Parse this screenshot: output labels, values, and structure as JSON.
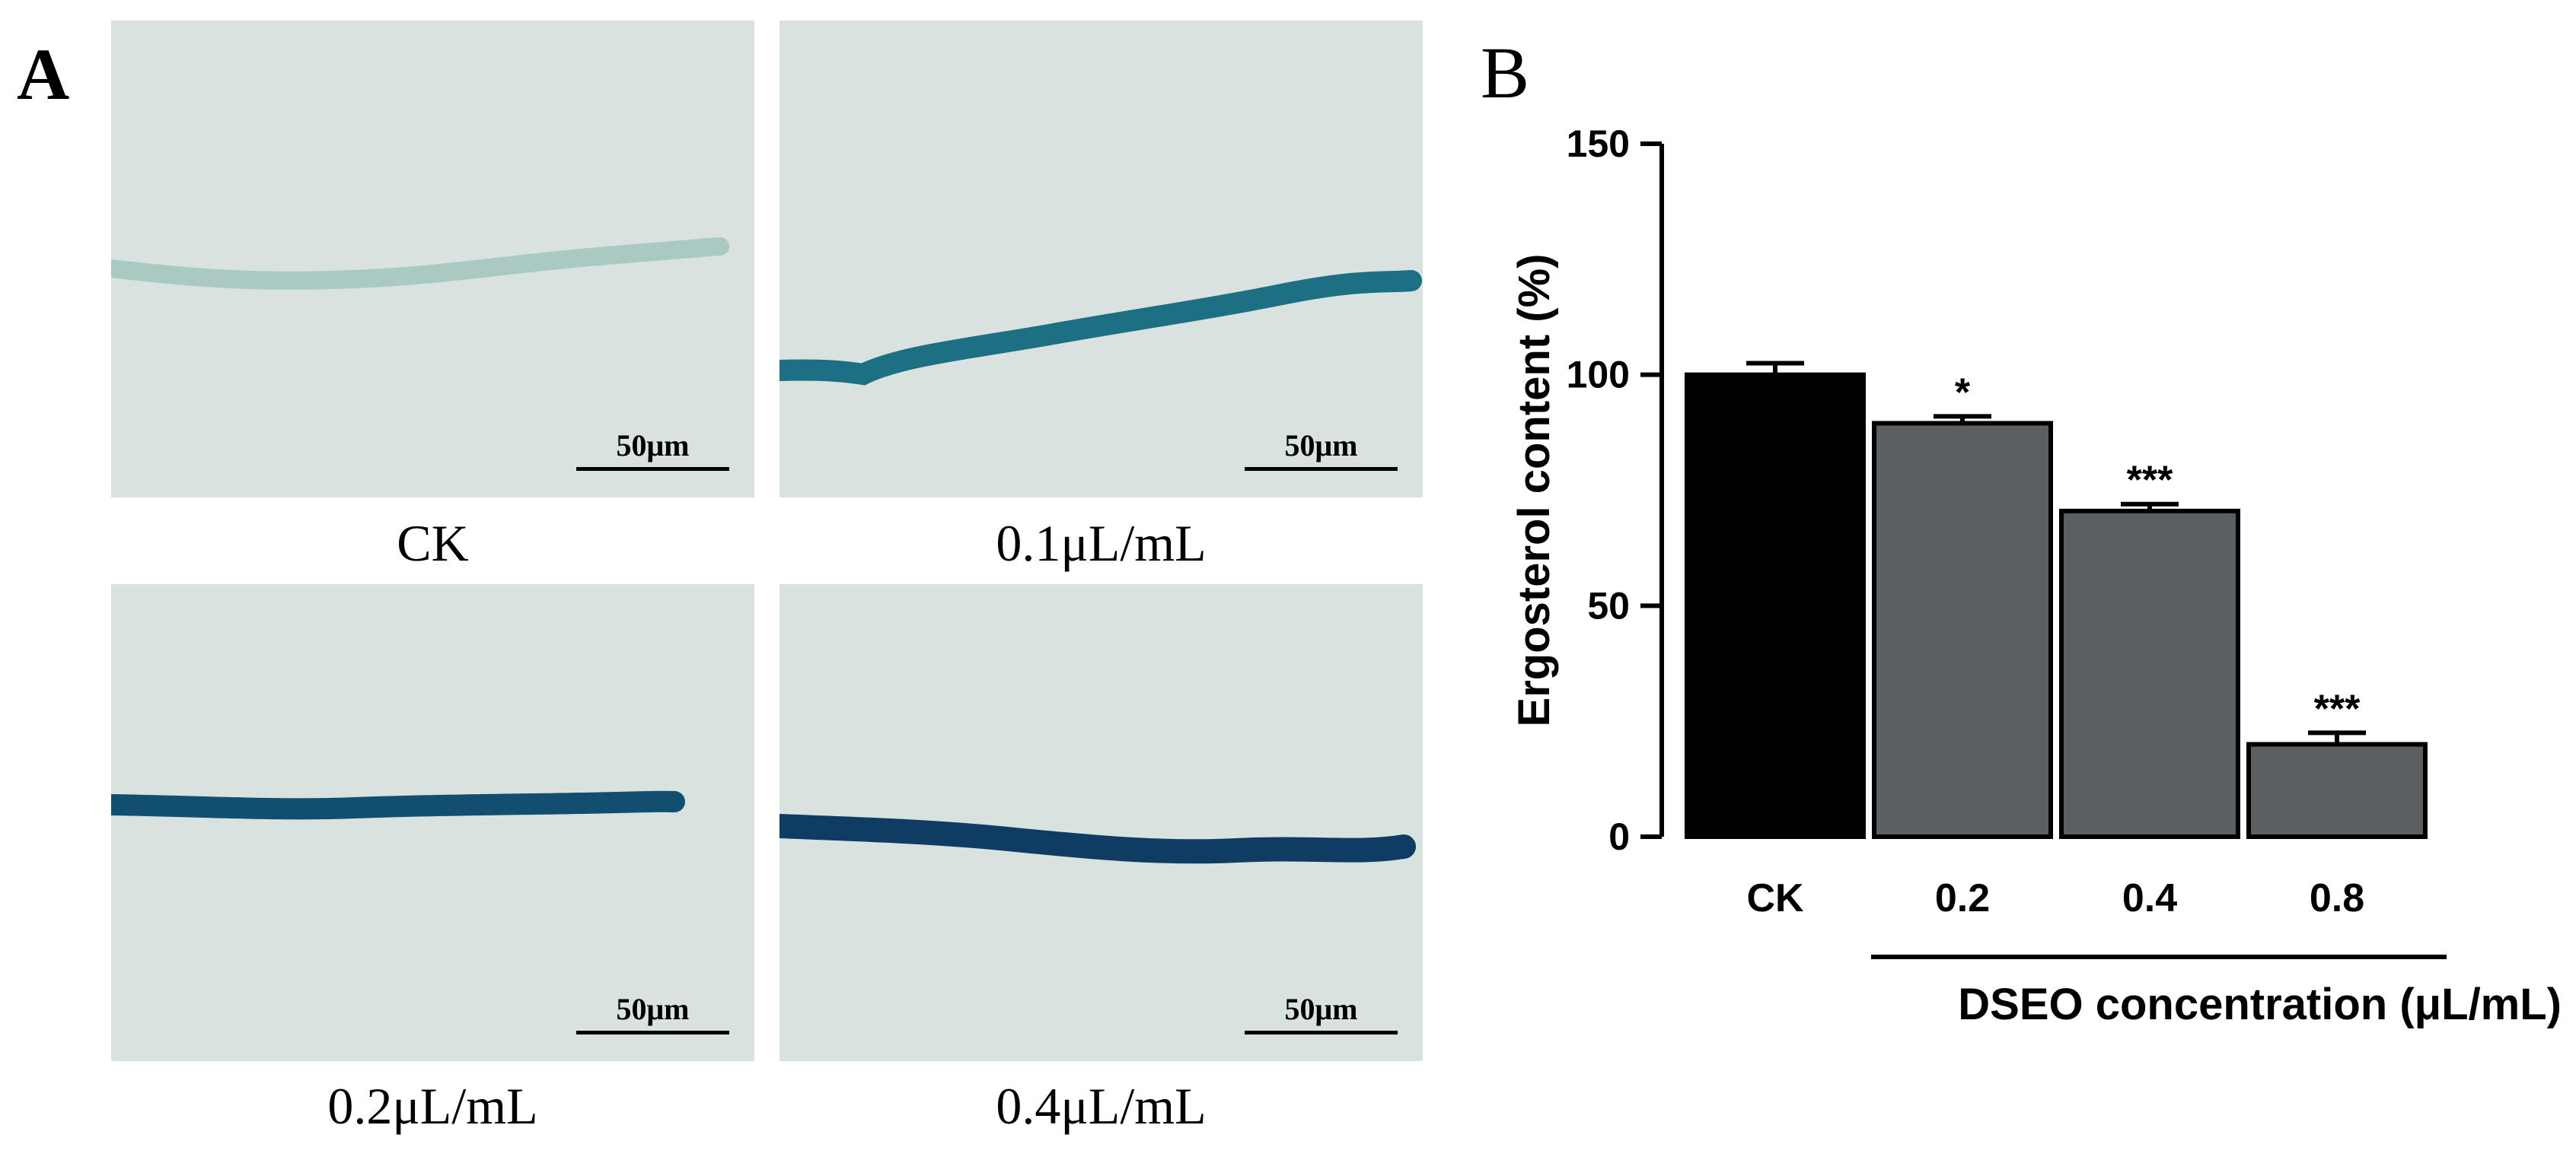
{
  "panel_a": {
    "letter": "A",
    "images": [
      {
        "caption": "CK",
        "scale_label": "50μm",
        "stain": "#a9c9c2"
      },
      {
        "caption": "0.1μL/mL",
        "scale_label": "50μm",
        "stain": "#1d6f84"
      },
      {
        "caption": "0.2μL/mL",
        "scale_label": "50μm",
        "stain": "#114e70"
      },
      {
        "caption": "0.4μL/mL",
        "scale_label": "50μm",
        "stain": "#0f3c63"
      }
    ],
    "background": "#d8e2df"
  },
  "panel_b": {
    "letter": "B"
  },
  "chart_data": {
    "type": "bar",
    "title": "",
    "categories": [
      "CK",
      "0.2",
      "0.4",
      "0.8"
    ],
    "values": [
      100,
      89.5,
      70.5,
      20
    ],
    "errors": [
      2.5,
      1.5,
      1.5,
      2.5
    ],
    "significance": [
      "",
      "*",
      "***",
      "***"
    ],
    "colors": [
      "#000000",
      "#5b5f61",
      "#5b5f61",
      "#5b5f61"
    ],
    "ylabel": "Ergosterol content (%)",
    "xlabel": "DSEO concentration (μL/mL)",
    "ylim": [
      0,
      150
    ],
    "yticks": [
      0,
      50,
      100,
      150
    ],
    "grid": false
  }
}
